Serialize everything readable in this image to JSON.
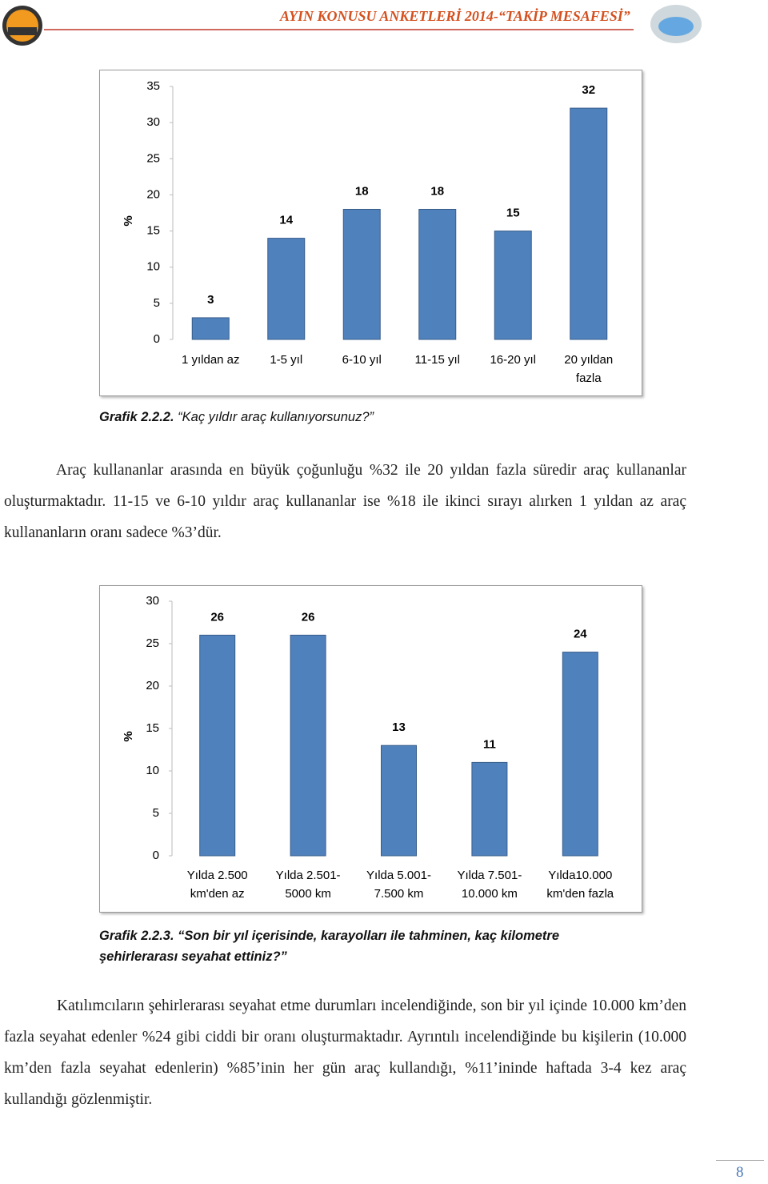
{
  "header": {
    "title": "AYIN KONUSU ANKETLERİ 2014-“TAKİP MESAFESİ”"
  },
  "chart_data": [
    {
      "type": "bar",
      "y_label": "%",
      "categories": [
        "1 yıldan az",
        "1-5 yıl",
        "6-10 yıl",
        "11-15 yıl",
        "16-20 yıl",
        "20 yıldan fazla"
      ],
      "values": [
        3,
        14,
        18,
        18,
        15,
        32
      ],
      "color": "#4f81bd",
      "ylim": [
        0,
        35
      ],
      "yticks": [
        0,
        5,
        10,
        15,
        20,
        25,
        30,
        35
      ]
    },
    {
      "type": "bar",
      "y_label": "%",
      "categories": [
        "Yılda 2.500 km'den az",
        "Yılda 2.501-5000 km",
        "Yılda 5.001-7.500 km",
        "Yılda 7.501-10.000 km",
        "Yılda10.000 km'den fazla"
      ],
      "values": [
        26,
        26,
        13,
        11,
        24
      ],
      "color": "#4f81bd",
      "ylim": [
        0,
        30
      ],
      "yticks": [
        0,
        5,
        10,
        15,
        20,
        25,
        30
      ]
    }
  ],
  "captions": [
    {
      "label": "Grafik 2.2.2.",
      "text": "“Kaç yıldır araç kullanıyorsunuz?”"
    },
    {
      "label": "Grafik 2.2.3.",
      "text": "“Son bir yıl içerisinde, karayolları ile tahminen, kaç kilometre şehirlerarası seyahat ettiniz?”"
    }
  ],
  "paragraphs": [
    "Araç kullananlar arasında en büyük çoğunluğu %32 ile 20 yıldan fazla süredir araç kullananlar oluşturmaktadır. 11-15 ve 6-10 yıldır araç kullananlar ise %18 ile ikinci sırayı alırken 1 yıldan az araç kullananların oranı sadece %3’dür.",
    "Katılımcıların şehirlerarası seyahat etme durumları incelendiğinde, son bir yıl içinde 10.000 km’den fazla seyahat edenler %24 gibi ciddi bir oranı oluşturmaktadır. Ayrıntılı incelendiğinde bu kişilerin (10.000 km’den fazla seyahat edenlerin) %85’inin her gün araç kullandığı, %11’ininde haftada 3-4 kez araç kullandığı gözlenmiştir."
  ],
  "page_number": "8"
}
